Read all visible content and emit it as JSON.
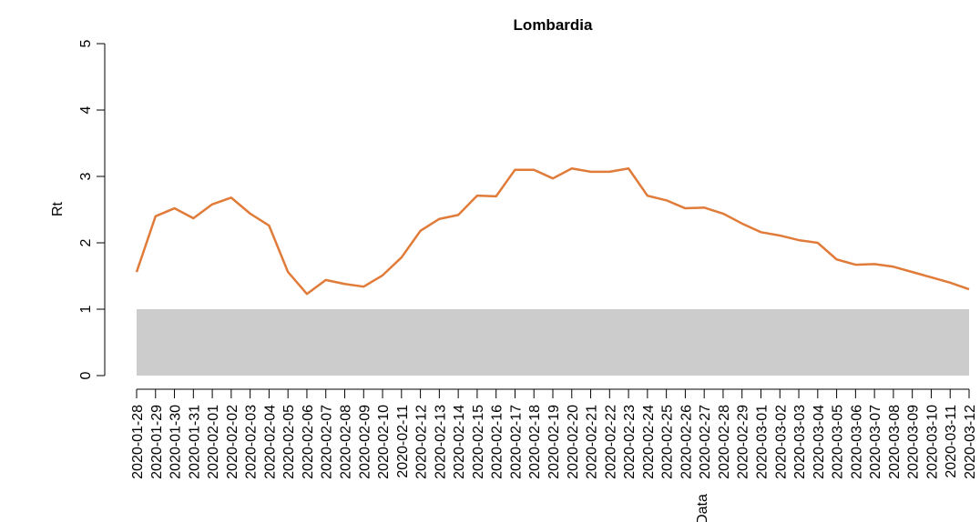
{
  "chart_data": {
    "type": "line",
    "title": "Lombardia",
    "ylabel": "Rt",
    "xlabel": "Data",
    "categories": [
      "2020-01-28",
      "2020-01-29",
      "2020-01-30",
      "2020-01-31",
      "2020-02-01",
      "2020-02-02",
      "2020-02-03",
      "2020-02-04",
      "2020-02-05",
      "2020-02-06",
      "2020-02-07",
      "2020-02-08",
      "2020-02-09",
      "2020-02-10",
      "2020-02-11",
      "2020-02-12",
      "2020-02-13",
      "2020-02-14",
      "2020-02-15",
      "2020-02-16",
      "2020-02-17",
      "2020-02-18",
      "2020-02-19",
      "2020-02-20",
      "2020-02-21",
      "2020-02-22",
      "2020-02-23",
      "2020-02-24",
      "2020-02-25",
      "2020-02-26",
      "2020-02-27",
      "2020-02-28",
      "2020-02-29",
      "2020-03-01",
      "2020-03-02",
      "2020-03-03",
      "2020-03-04",
      "2020-03-05",
      "2020-03-06",
      "2020-03-07",
      "2020-03-08",
      "2020-03-09",
      "2020-03-10",
      "2020-03-11",
      "2020-03-12"
    ],
    "values": [
      1.56,
      2.4,
      2.52,
      2.37,
      2.58,
      2.68,
      2.44,
      2.26,
      1.56,
      1.23,
      1.44,
      1.38,
      1.34,
      1.51,
      1.78,
      2.18,
      2.36,
      2.42,
      2.71,
      2.7,
      3.1,
      3.1,
      2.97,
      3.12,
      3.07,
      3.07,
      3.12,
      2.71,
      2.64,
      2.52,
      2.53,
      2.44,
      2.29,
      2.16,
      2.11,
      2.04,
      2.0,
      1.75,
      1.67,
      1.68,
      1.64,
      1.56,
      1.48,
      1.4,
      1.3
    ],
    "color": "#e07b39",
    "band": {
      "range": [
        0,
        1
      ],
      "color": "#cccccc"
    },
    "ylim": [
      0,
      5
    ],
    "yticks": [
      0,
      1,
      2,
      3,
      4,
      5
    ]
  }
}
